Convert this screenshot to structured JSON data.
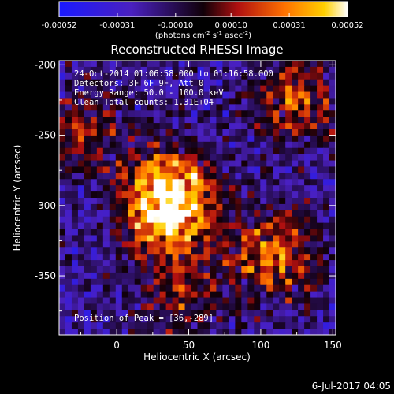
{
  "chart_data": {
    "type": "heatmap",
    "title": "Reconstructed RHESSI Image",
    "xlabel": "Heliocentric X (arcsec)",
    "ylabel": "Heliocentric Y (arcsec)",
    "xlim": [
      -40,
      152
    ],
    "ylim": [
      -392,
      -197
    ],
    "x_ticks": [
      "0",
      "50",
      "100",
      "150"
    ],
    "y_ticks": [
      "-200",
      "-250",
      "-300",
      "-350"
    ],
    "colorbar": {
      "range": [
        -0.00052,
        0.00052
      ],
      "tick_labels": [
        "-0.00052",
        "-0.00031",
        "-0.00010",
        "0.00010",
        "0.00031",
        "0.00052"
      ],
      "unit_prefix": "(photons cm",
      "unit_exp1": "-2",
      "unit_mid": " s",
      "unit_exp2": "-1",
      "unit_mid2": " asec",
      "unit_exp3": "-2",
      "unit_suffix": ")"
    },
    "annotations": {
      "time_range": "24-Oct-2014 01:06:58.000 to 01:16:58.000",
      "detectors": "Detectors: 3F 6F 9F, Att 0",
      "energy": "Energy Range: 50.0 - 100.0 keV",
      "method": "Clean    Total counts: 1.31E+04",
      "peak": "Position of Peak = [36,-289]"
    },
    "bright_regions": [
      {
        "x": 36,
        "y": -289,
        "level": 1.0
      },
      {
        "x": 35,
        "y": -310,
        "level": 0.8
      },
      {
        "x": 110,
        "y": -335,
        "level": 0.85
      },
      {
        "x": 125,
        "y": -225,
        "level": 0.7
      },
      {
        "x": -25,
        "y": -245,
        "level": 0.55
      },
      {
        "x": 45,
        "y": -365,
        "level": 0.45
      }
    ]
  },
  "footer": {
    "date": "6-Jul-2017 04:05"
  }
}
